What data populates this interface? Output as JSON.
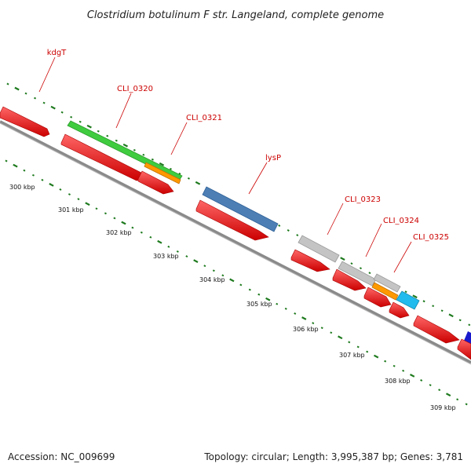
{
  "title": "Clostridium botulinum F str. Langeland, complete genome",
  "footer": {
    "accession": "Accession: NC_009699",
    "summary": "Topology: circular; Length: 3,995,387 bp; Genes: 3,781"
  },
  "colors": {
    "backbone": "#8a8a8a",
    "cds_red": "#ee1111",
    "gc_ticks": "#1e7a1e",
    "label_red": "#cc0000"
  },
  "genes": [
    {
      "name": "kdgT",
      "color": "#ee1111"
    },
    {
      "name": "CLI_0320",
      "color": "#3fcc3f"
    },
    {
      "name": "CLI_0321",
      "color": "#ff9900"
    },
    {
      "name": "lysP",
      "color": "#4d7fb5"
    },
    {
      "name": "CLI_0323",
      "color": "#bdbdbd"
    },
    {
      "name": "CLI_0324",
      "color": "#bdbdbd"
    },
    {
      "name": "CLI_0325",
      "color": "#22bbee"
    }
  ],
  "ticks": [
    "300 kbp",
    "301 kbp",
    "302 kbp",
    "303 kbp",
    "304 kbp",
    "305 kbp",
    "306 kbp",
    "307 kbp",
    "308 kbp",
    "309 kbp"
  ]
}
